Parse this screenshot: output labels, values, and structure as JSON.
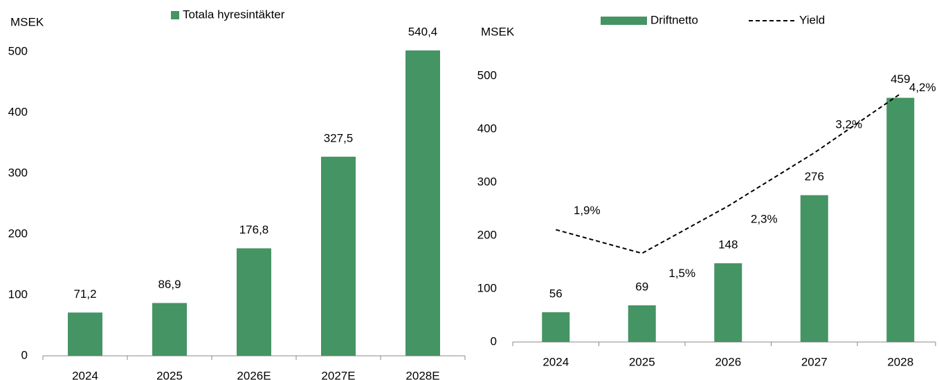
{
  "chart_data": [
    {
      "type": "bar",
      "y_unit": "MSEK",
      "categories": [
        "2024",
        "2025",
        "2026E",
        "2027E",
        "2028E"
      ],
      "series": [
        {
          "name": "Totala hyresintäkter",
          "color": "#459464",
          "values": [
            71.2,
            86.9,
            176.8,
            327.5,
            540.4
          ],
          "value_labels": [
            "71,2",
            "86,9",
            "176,8",
            "327,5",
            "540,4"
          ]
        }
      ],
      "ylim": [
        0,
        500
      ],
      "yticks": [
        0,
        100,
        200,
        300,
        400,
        500
      ]
    },
    {
      "type": "bar_line",
      "y_unit": "MSEK",
      "categories": [
        "2024",
        "2025",
        "2026",
        "2027",
        "2028"
      ],
      "series": [
        {
          "name": "Driftnetto",
          "type": "bar",
          "color": "#459464",
          "values": [
            56,
            69,
            148,
            276,
            459
          ]
        },
        {
          "name": "Yield",
          "type": "line",
          "style": "dashed",
          "color": "#000000",
          "axis": "y2",
          "values": [
            1.9,
            1.5,
            2.3,
            3.2,
            4.2
          ],
          "value_labels": [
            "1,9%",
            "1,5%",
            "2,3%",
            "3,2%",
            "4,2%"
          ]
        }
      ],
      "ylim": [
        0,
        500
      ],
      "yticks": [
        0,
        100,
        200,
        300,
        400,
        500
      ],
      "y2lim": [
        0,
        4.5
      ]
    }
  ]
}
